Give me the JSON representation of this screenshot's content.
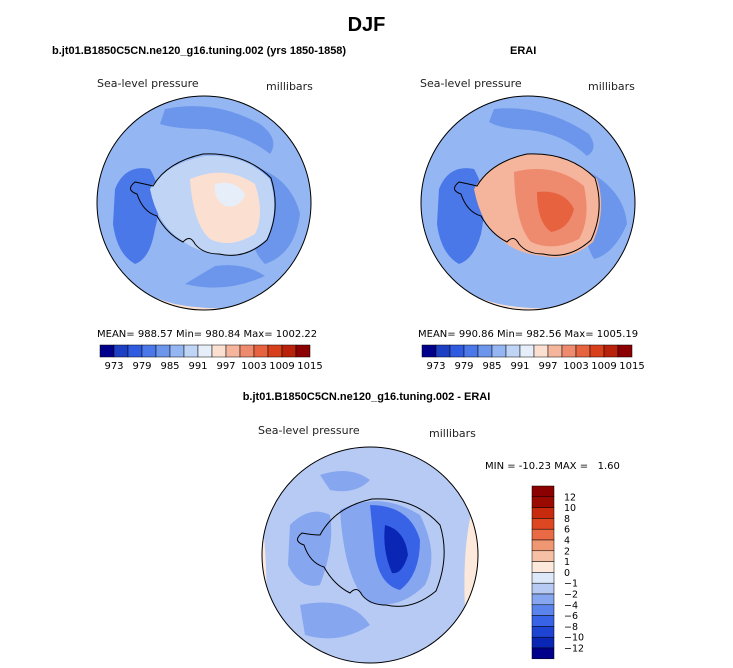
{
  "page": {
    "title": "DJF"
  },
  "panels": [
    {
      "id": "model",
      "title": "b.jt01.B1850C5CN.ne120_g16.tuning.002 (yrs 1850-1858)",
      "variable": "Sea-level pressure",
      "units": "millibars",
      "mean_label": "MEAN=",
      "mean": "988.57",
      "min_label": "Min=",
      "min": "980.84",
      "max_label": "Max=",
      "max": "1002.22"
    },
    {
      "id": "erai",
      "title": "ERAI",
      "variable": "Sea-level pressure",
      "units": "millibars",
      "mean_label": "MEAN=",
      "mean": "990.86",
      "min_label": "Min=",
      "min": "982.56",
      "max_label": "Max=",
      "max": "1005.19"
    }
  ],
  "diff_panel": {
    "title": "b.jt01.B1850C5CN.ne120_g16.tuning.002 - ERAI",
    "variable": "Sea-level pressure",
    "units": "millibars",
    "stats": "MIN = -10.23 MAX =   1.60"
  },
  "colors": {
    "abs_scale": [
      "#00008b",
      "#1c3fc4",
      "#2f5be0",
      "#4a78e8",
      "#6b96ec",
      "#94b6f2",
      "#c0d4f6",
      "#e6eef9",
      "#fbe0d2",
      "#f5b59c",
      "#ee8a6e",
      "#e7623f",
      "#d8401c",
      "#b8220b",
      "#8b0000"
    ],
    "diff_scale": [
      "#00008b",
      "#0a26b5",
      "#1e44d4",
      "#3863e6",
      "#5a84ec",
      "#86a6f0",
      "#b6caf4",
      "#dde8f8",
      "#fde9dc",
      "#f6c0a6",
      "#ef9673",
      "#e86b46",
      "#dd4722",
      "#c72a0c",
      "#9b0a00",
      "#8b0000"
    ]
  },
  "chart_data": [
    {
      "type": "heatmap",
      "projection": "polar-stereographic-south",
      "title": "b.jt01.B1850C5CN.ne120_g16.tuning.002 (yrs 1850-1858)",
      "variable": "Sea-level pressure",
      "units": "millibars",
      "mean": 988.57,
      "min": 980.84,
      "max": 1002.22,
      "colorbar_ticks": [
        "973",
        "979",
        "985",
        "991",
        "997",
        "1003",
        "1009",
        "1015"
      ]
    },
    {
      "type": "heatmap",
      "projection": "polar-stereographic-south",
      "title": "ERAI",
      "variable": "Sea-level pressure",
      "units": "millibars",
      "mean": 990.86,
      "min": 982.56,
      "max": 1005.19,
      "colorbar_ticks": [
        "973",
        "979",
        "985",
        "991",
        "997",
        "1003",
        "1009",
        "1015"
      ]
    },
    {
      "type": "heatmap",
      "projection": "polar-stereographic-south",
      "title": "b.jt01.B1850C5CN.ne120_g16.tuning.002 - ERAI",
      "variable": "Sea-level pressure",
      "units": "millibars",
      "min": -10.23,
      "max": 1.6,
      "colorbar_ticks": [
        "12",
        "10",
        "8",
        "6",
        "4",
        "2",
        "1",
        "0",
        "−1",
        "−2",
        "−4",
        "−6",
        "−8",
        "−10",
        "−12"
      ]
    }
  ]
}
